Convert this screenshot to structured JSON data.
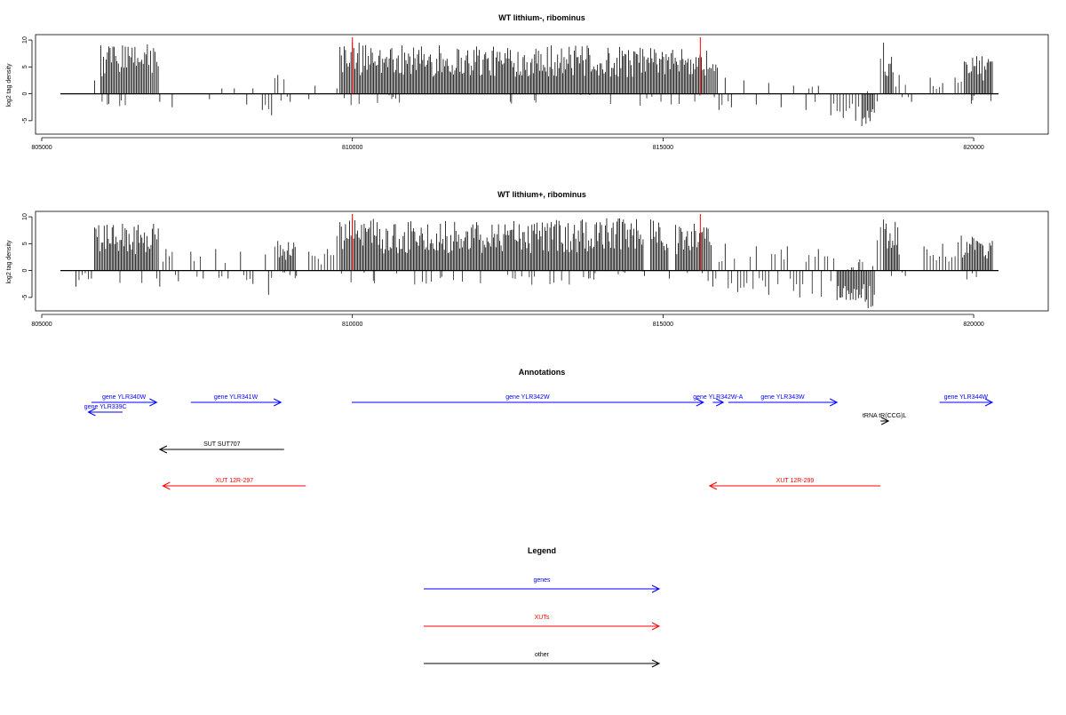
{
  "chart_data": [
    {
      "type": "bar",
      "title": "WT lithium-, ribominus",
      "xlabel": "",
      "ylabel": "log2 tag density",
      "xlim": [
        804900,
        821200
      ],
      "ylim": [
        -7.5,
        11
      ],
      "x_ticks": [
        805000,
        810000,
        815000,
        820000
      ],
      "x_tick_labels": [
        "805000",
        "810000",
        "815000",
        "820000"
      ],
      "y_ticks": [
        10,
        5,
        0,
        -5
      ],
      "y_tick_labels": [
        "10",
        "5",
        "0",
        "-5"
      ],
      "baseline_range": [
        805300,
        820400
      ],
      "markers": [
        {
          "x": 810000,
          "color": "#ff0000"
        },
        {
          "x": 815600,
          "color": "#ff0000"
        }
      ],
      "series": [
        {
          "values": [
            {
              "x": 805850,
              "y": 2.5
            },
            {
              "x": 805950,
              "y": 9.0
            },
            {
              "x": 806100,
              "y": 8.5
            },
            {
              "x": 806300,
              "y": 9.0
            },
            {
              "x": 806500,
              "y": 8.7
            },
            {
              "x": 806700,
              "y": 9.2
            },
            {
              "x": 806800,
              "y": 8.5
            },
            {
              "x": 806900,
              "y": -1.5
            },
            {
              "x": 807100,
              "y": -2.5
            },
            {
              "x": 807700,
              "y": -1.0
            },
            {
              "x": 807900,
              "y": 1.0
            },
            {
              "x": 808100,
              "y": 1.0
            },
            {
              "x": 808300,
              "y": -2.0
            },
            {
              "x": 808400,
              "y": 1.0
            },
            {
              "x": 808550,
              "y": -3.0
            },
            {
              "x": 808700,
              "y": -4.0
            },
            {
              "x": 808800,
              "y": 3.5
            },
            {
              "x": 809000,
              "y": -1.5
            },
            {
              "x": 809300,
              "y": -1.0
            },
            {
              "x": 809400,
              "y": 1.5
            },
            {
              "x": 809750,
              "y": 1.0
            },
            {
              "x": 809800,
              "y": 8.7
            },
            {
              "x": 810000,
              "y": 9.5
            },
            {
              "x": 810300,
              "y": 8.5
            },
            {
              "x": 810800,
              "y": 9.0
            },
            {
              "x": 811400,
              "y": 9.0
            },
            {
              "x": 812000,
              "y": 8.8
            },
            {
              "x": 812500,
              "y": 8.5
            },
            {
              "x": 813200,
              "y": 9.0
            },
            {
              "x": 813800,
              "y": 8.5
            },
            {
              "x": 814300,
              "y": 8.7
            },
            {
              "x": 814800,
              "y": 8.5
            },
            {
              "x": 815300,
              "y": 8.3
            },
            {
              "x": 815700,
              "y": 8.0
            },
            {
              "x": 815800,
              "y": 5.5
            },
            {
              "x": 815900,
              "y": -3.0
            },
            {
              "x": 816000,
              "y": 3.0
            },
            {
              "x": 816100,
              "y": -2.5
            },
            {
              "x": 816300,
              "y": 2.5
            },
            {
              "x": 816500,
              "y": -2.0
            },
            {
              "x": 816700,
              "y": 2.0
            },
            {
              "x": 816900,
              "y": -2.5
            },
            {
              "x": 817100,
              "y": 1.5
            },
            {
              "x": 817300,
              "y": -3.0
            },
            {
              "x": 817500,
              "y": 1.5
            },
            {
              "x": 817700,
              "y": -4.0
            },
            {
              "x": 817900,
              "y": -4.5
            },
            {
              "x": 818100,
              "y": -5.0
            },
            {
              "x": 818200,
              "y": -6.0
            },
            {
              "x": 818400,
              "y": -3.5
            },
            {
              "x": 818550,
              "y": 9.5
            },
            {
              "x": 818700,
              "y": 4.0
            },
            {
              "x": 818800,
              "y": 3.5
            },
            {
              "x": 819000,
              "y": -1.5
            },
            {
              "x": 819300,
              "y": 3.0
            },
            {
              "x": 819500,
              "y": 2.0
            },
            {
              "x": 819700,
              "y": 3.0
            },
            {
              "x": 819850,
              "y": 6.0
            },
            {
              "x": 820050,
              "y": 7.0
            },
            {
              "x": 820300,
              "y": 6.0
            }
          ]
        }
      ]
    },
    {
      "type": "bar",
      "title": "WT lithium+, ribominus",
      "xlabel": "",
      "ylabel": "log2 tag density",
      "xlim": [
        804900,
        821200
      ],
      "ylim": [
        -7.5,
        11
      ],
      "x_ticks": [
        805000,
        810000,
        815000,
        820000
      ],
      "x_tick_labels": [
        "805000",
        "810000",
        "815000",
        "820000"
      ],
      "y_ticks": [
        10,
        5,
        0,
        -5
      ],
      "y_tick_labels": [
        "10",
        "5",
        "0",
        "-5"
      ],
      "baseline_range": [
        805300,
        820400
      ],
      "markers": [
        {
          "x": 810000,
          "color": "#ff0000"
        },
        {
          "x": 815600,
          "color": "#ff0000"
        }
      ],
      "series": [
        {
          "values": [
            {
              "x": 805550,
              "y": -3.0
            },
            {
              "x": 805800,
              "y": -1.5
            },
            {
              "x": 805850,
              "y": 8.0
            },
            {
              "x": 806050,
              "y": 8.5
            },
            {
              "x": 806300,
              "y": 8.7
            },
            {
              "x": 806550,
              "y": 8.5
            },
            {
              "x": 806800,
              "y": 8.7
            },
            {
              "x": 806900,
              "y": -3.0
            },
            {
              "x": 807000,
              "y": 4.0
            },
            {
              "x": 807200,
              "y": -2.0
            },
            {
              "x": 807400,
              "y": 3.5
            },
            {
              "x": 807600,
              "y": -1.5
            },
            {
              "x": 807800,
              "y": 4.0
            },
            {
              "x": 808000,
              "y": -1.5
            },
            {
              "x": 808200,
              "y": 3.5
            },
            {
              "x": 808400,
              "y": -2.5
            },
            {
              "x": 808600,
              "y": 3.0
            },
            {
              "x": 808650,
              "y": -4.5
            },
            {
              "x": 808800,
              "y": 5.5
            },
            {
              "x": 809100,
              "y": -1.0
            },
            {
              "x": 809300,
              "y": 3.5
            },
            {
              "x": 809600,
              "y": 4.0
            },
            {
              "x": 809800,
              "y": 9.0
            },
            {
              "x": 810000,
              "y": 9.7
            },
            {
              "x": 810400,
              "y": 9.0
            },
            {
              "x": 810900,
              "y": 9.0
            },
            {
              "x": 811500,
              "y": 9.2
            },
            {
              "x": 812000,
              "y": 9.0
            },
            {
              "x": 812600,
              "y": 9.2
            },
            {
              "x": 813200,
              "y": 9.0
            },
            {
              "x": 813700,
              "y": 9.5
            },
            {
              "x": 814300,
              "y": 9.7
            },
            {
              "x": 814800,
              "y": 9.5
            },
            {
              "x": 815200,
              "y": 8.5
            },
            {
              "x": 815500,
              "y": 8.7
            },
            {
              "x": 815700,
              "y": 8.0
            },
            {
              "x": 814700,
              "y": -1.0
            },
            {
              "x": 815100,
              "y": -1.5
            },
            {
              "x": 815800,
              "y": -3.0
            },
            {
              "x": 816000,
              "y": 5.0
            },
            {
              "x": 816200,
              "y": -4.0
            },
            {
              "x": 816500,
              "y": 4.5
            },
            {
              "x": 816700,
              "y": -4.5
            },
            {
              "x": 817000,
              "y": 4.5
            },
            {
              "x": 817200,
              "y": -5.0
            },
            {
              "x": 817500,
              "y": 4.0
            },
            {
              "x": 817800,
              "y": -5.5
            },
            {
              "x": 818100,
              "y": -5.5
            },
            {
              "x": 818300,
              "y": -7.0
            },
            {
              "x": 818400,
              "y": -4.5
            },
            {
              "x": 818550,
              "y": 9.5
            },
            {
              "x": 818800,
              "y": 3.0
            },
            {
              "x": 818900,
              "y": -1.0
            },
            {
              "x": 819200,
              "y": 4.5
            },
            {
              "x": 819500,
              "y": 5.0
            },
            {
              "x": 819800,
              "y": 6.5
            },
            {
              "x": 820000,
              "y": 6.0
            },
            {
              "x": 820300,
              "y": 5.5
            }
          ]
        }
      ]
    }
  ],
  "annotations": {
    "title": "Annotations",
    "xlim": [
      804900,
      821200
    ],
    "items": [
      {
        "label": "gene YLR340W",
        "start": 805800,
        "end": 806850,
        "direction": "right",
        "row": 0,
        "color": "#0000ff"
      },
      {
        "label": "gene YLR339C",
        "start": 805750,
        "end": 806300,
        "direction": "left",
        "row": 0.45,
        "color": "#0000ff"
      },
      {
        "label": "gene YLR341W",
        "start": 807400,
        "end": 808850,
        "direction": "right",
        "row": 0,
        "color": "#0000ff"
      },
      {
        "label": "gene YLR342W",
        "start": 809990,
        "end": 815650,
        "direction": "right",
        "row": 0,
        "color": "#0000ff"
      },
      {
        "label": "gene YLR342W-A",
        "start": 815800,
        "end": 815970,
        "direction": "right",
        "row": 0,
        "color": "#0000ff"
      },
      {
        "label": "gene YLR343W",
        "start": 816050,
        "end": 817800,
        "direction": "right",
        "row": 0,
        "color": "#0000ff"
      },
      {
        "label": "gene YLR344W",
        "start": 819450,
        "end": 820300,
        "direction": "right",
        "row": 0,
        "color": "#0000ff"
      },
      {
        "label": "tRNA tR(CCG)L",
        "start": 818500,
        "end": 818620,
        "direction": "right",
        "row": 1,
        "color": "#000000"
      },
      {
        "label": "SUT SUT707",
        "start": 806900,
        "end": 808900,
        "direction": "left",
        "row": 2,
        "color": "#000000"
      },
      {
        "label": "XUT 12R-297",
        "start": 806950,
        "end": 809250,
        "direction": "left",
        "row": 3,
        "color": "#ff0000"
      },
      {
        "label": "XUT 12R-299",
        "start": 815750,
        "end": 818500,
        "direction": "left",
        "row": 3,
        "color": "#ff0000"
      }
    ]
  },
  "legend": {
    "title": "Legend",
    "items": [
      {
        "label": "genes",
        "color": "#0000ff"
      },
      {
        "label": "XUTs",
        "color": "#ff0000"
      },
      {
        "label": "other",
        "color": "#000000"
      }
    ]
  }
}
